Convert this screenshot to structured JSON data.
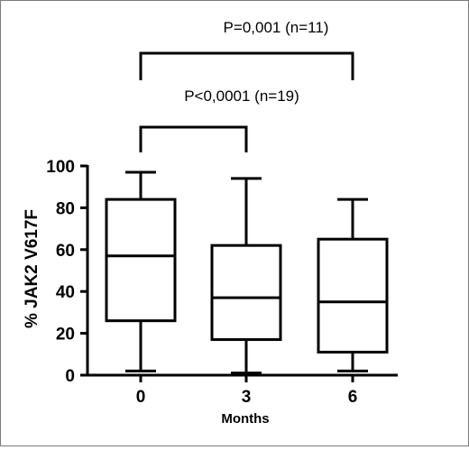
{
  "chart_data": {
    "type": "boxplot",
    "xlabel": "Months",
    "ylabel": "% JAK2 V617F",
    "ylim": [
      0,
      100
    ],
    "yticks": [
      0,
      20,
      40,
      60,
      80,
      100
    ],
    "categories": [
      "0",
      "3",
      "6"
    ],
    "boxes": [
      {
        "category": "0",
        "min": 2,
        "q1": 26,
        "median": 57,
        "q3": 84,
        "max": 97
      },
      {
        "category": "3",
        "min": 1,
        "q1": 17,
        "median": 37,
        "q3": 62,
        "max": 94
      },
      {
        "category": "6",
        "min": 2,
        "q1": 11,
        "median": 35,
        "q3": 65,
        "max": 84
      }
    ],
    "annotations": [
      {
        "text": "P<0,0001 (n=19)",
        "from": "0",
        "to": "3"
      },
      {
        "text": "P=0,001 (n=11)",
        "from": "0",
        "to": "6"
      }
    ],
    "grid": false,
    "legend": "none"
  }
}
